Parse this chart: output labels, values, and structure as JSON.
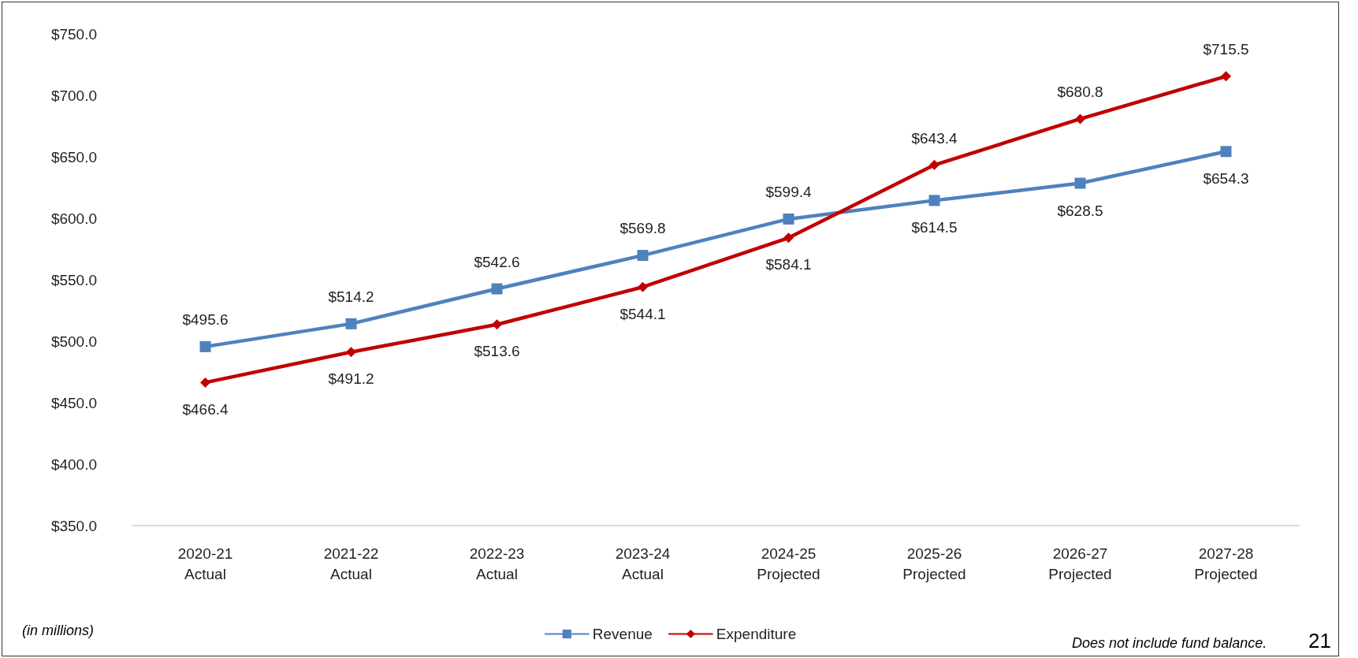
{
  "chart_data": {
    "type": "line",
    "categories": [
      "2020-21\nActual",
      "2021-22\nActual",
      "2022-23\nActual",
      "2023-24\nActual",
      "2024-25\nProjected",
      "2025-26\nProjected",
      "2026-27\nProjected",
      "2027-28\nProjected"
    ],
    "series": [
      {
        "name": "Revenue",
        "color": "#4f81bd",
        "marker": "square",
        "values": [
          495.6,
          514.2,
          542.6,
          569.8,
          599.4,
          614.5,
          628.5,
          654.3
        ],
        "value_labels": [
          "$495.6",
          "$514.2",
          "$542.6",
          "$569.8",
          "$599.4",
          "$614.5",
          "$628.5",
          "$654.3"
        ]
      },
      {
        "name": "Expenditure",
        "color": "#c00000",
        "marker": "diamond",
        "values": [
          466.4,
          491.2,
          513.6,
          544.1,
          584.1,
          643.4,
          680.8,
          715.5
        ],
        "value_labels": [
          "$466.4",
          "$491.2",
          "$513.6",
          "$544.1",
          "$584.1",
          "$643.4",
          "$680.8",
          "$715.5"
        ]
      }
    ],
    "ylim": [
      350,
      750
    ],
    "yticks": [
      {
        "value": 350,
        "label": "$350.0"
      },
      {
        "value": 400,
        "label": "$400.0"
      },
      {
        "value": 450,
        "label": "$450.0"
      },
      {
        "value": 500,
        "label": "$500.0"
      },
      {
        "value": 550,
        "label": "$550.0"
      },
      {
        "value": 600,
        "label": "$600.0"
      },
      {
        "value": 650,
        "label": "$650.0"
      },
      {
        "value": 700,
        "label": "$700.0"
      },
      {
        "value": 750,
        "label": "$750.0"
      }
    ],
    "legend": "bottom",
    "line_style": "solid",
    "annotations": [
      "(in millions)",
      "Does not include fund balance.",
      "21"
    ]
  }
}
